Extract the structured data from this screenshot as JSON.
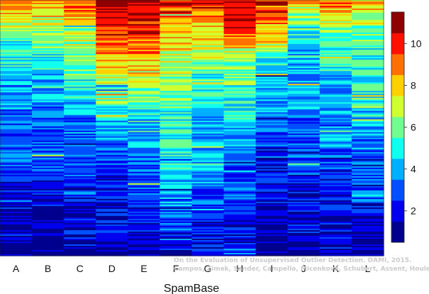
{
  "chart_data": {
    "type": "heatmap",
    "title": "",
    "xlabel": "SpamBase",
    "ylabel": "",
    "categories": [
      "A",
      "B",
      "C",
      "D",
      "E",
      "F",
      "G",
      "H",
      "I",
      "J",
      "K",
      "L"
    ],
    "colorbar": {
      "ticks": [
        2,
        4,
        6,
        8,
        10
      ],
      "range": [
        1,
        11
      ],
      "colors": [
        "#00008F",
        "#0000EF",
        "#0050FF",
        "#00AFFF",
        "#10FFEF",
        "#70FF8F",
        "#CFFF30",
        "#FFD000",
        "#FF7000",
        "#FF1000",
        "#8F0000"
      ]
    },
    "column_profiles": [
      {
        "column": "A",
        "levels": [
          9,
          6,
          5,
          4,
          3,
          3,
          2,
          1,
          1
        ]
      },
      {
        "column": "B",
        "levels": [
          9,
          6,
          5,
          4,
          3,
          3,
          2,
          1,
          1
        ]
      },
      {
        "column": "C",
        "levels": [
          10,
          7,
          6,
          5,
          3,
          3,
          2,
          2,
          1
        ]
      },
      {
        "column": "D",
        "levels": [
          11,
          10,
          8,
          6,
          4,
          3,
          2,
          2,
          1
        ]
      },
      {
        "column": "E",
        "levels": [
          11,
          10,
          8,
          6,
          4,
          3,
          3,
          2,
          1
        ]
      },
      {
        "column": "F",
        "levels": [
          10,
          8,
          7,
          6,
          5,
          5,
          4,
          3,
          1
        ]
      },
      {
        "column": "G",
        "levels": [
          10,
          8,
          6,
          5,
          4,
          4,
          3,
          2,
          2
        ]
      },
      {
        "column": "H",
        "levels": [
          11,
          9,
          6,
          5,
          4,
          3,
          3,
          2,
          3
        ]
      },
      {
        "column": "I",
        "levels": [
          10,
          8,
          5,
          4,
          3,
          2,
          2,
          1,
          1
        ]
      },
      {
        "column": "J",
        "levels": [
          8,
          5,
          4,
          4,
          3,
          3,
          2,
          2,
          1
        ]
      },
      {
        "column": "K",
        "levels": [
          9,
          6,
          5,
          4,
          4,
          3,
          2,
          2,
          1
        ]
      },
      {
        "column": "L",
        "levels": [
          8,
          6,
          5,
          5,
          4,
          3,
          3,
          2,
          1
        ]
      }
    ]
  },
  "watermark": {
    "line1": "On the Evaluation of Unsupervised Outlier Detection. DAMI, 2015.",
    "line2": "Campos, Zimek, Sander, Campello, Micenková, Schubert, Assent, Houle"
  }
}
